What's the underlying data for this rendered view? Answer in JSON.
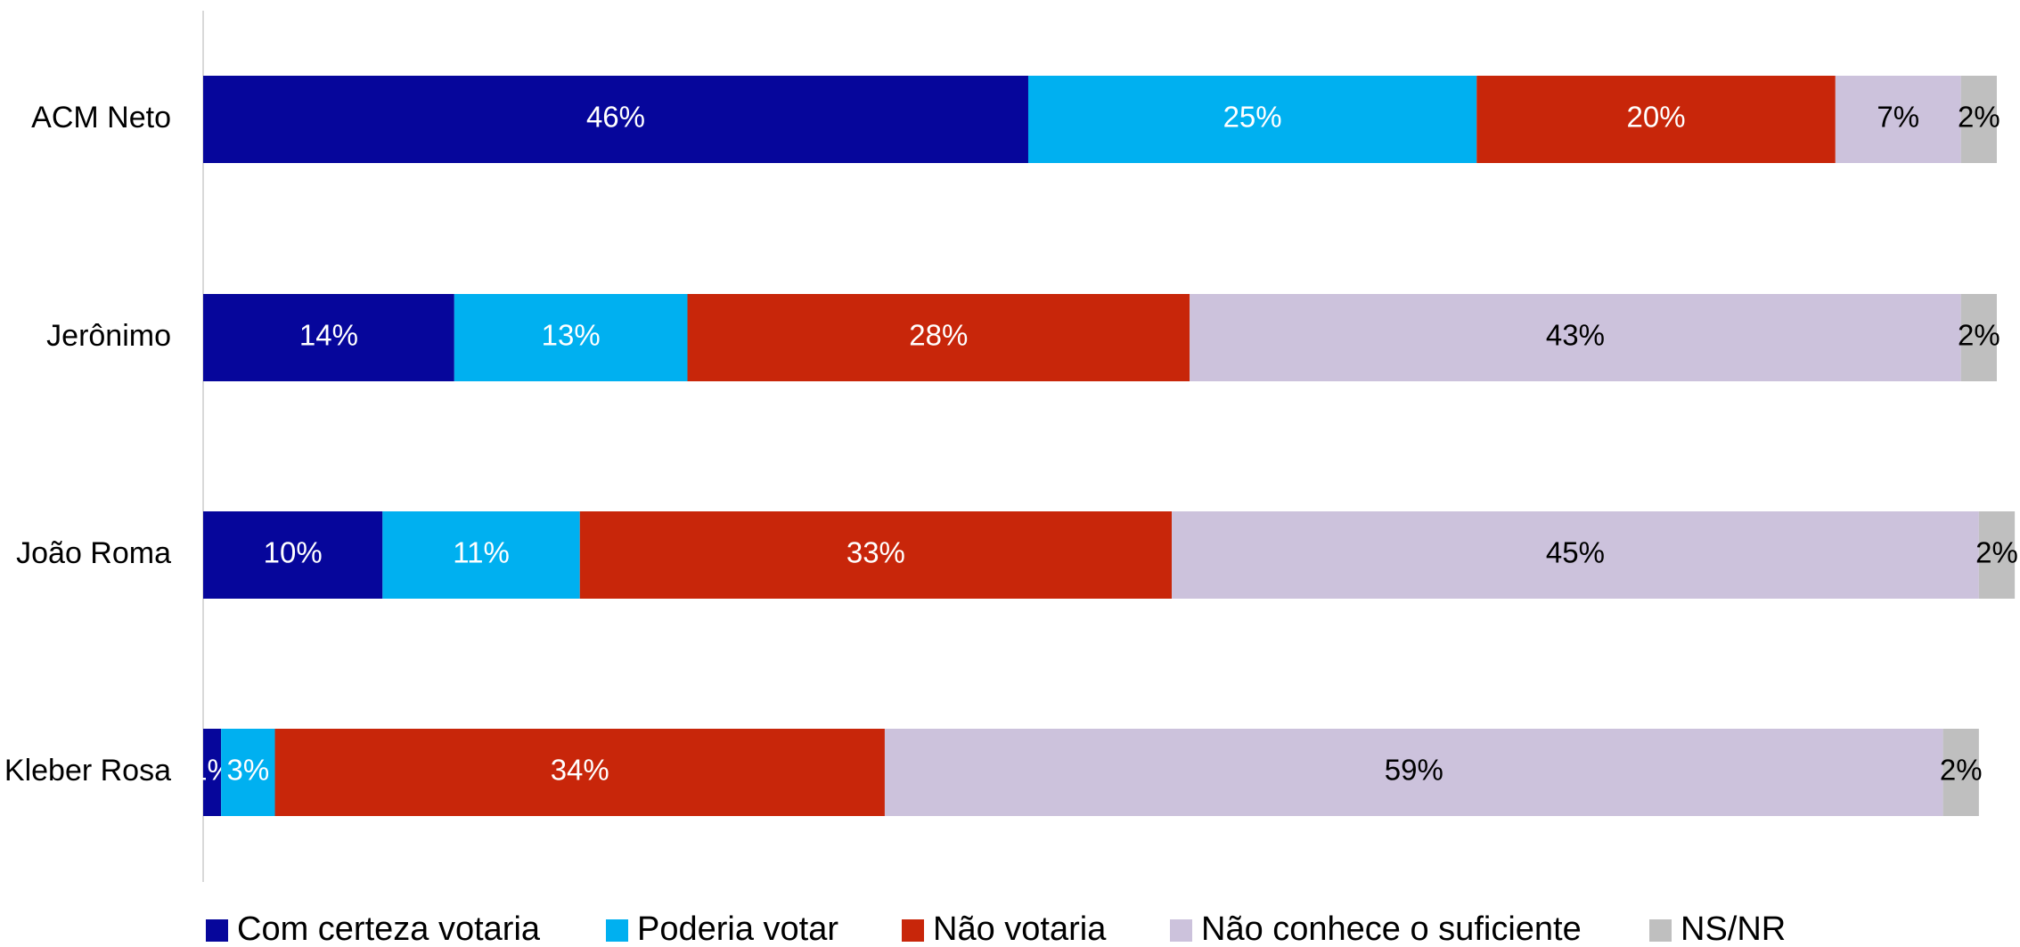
{
  "chart_data": {
    "type": "stacked_barh",
    "categories": [
      "ACM Neto",
      "Jerônimo",
      "João Roma",
      "Kleber Rosa"
    ],
    "xlim": [
      0,
      100
    ],
    "legend": "bottom",
    "series": [
      {
        "name": "Com certeza votaria",
        "color": "#06069b",
        "label_color": "#ffffff",
        "values": [
          46,
          14,
          10,
          1
        ],
        "value_labels": [
          "46%",
          "14%",
          "10%",
          "1%"
        ]
      },
      {
        "name": "Poderia votar",
        "color": "#00b0f0",
        "label_color": "#ffffff",
        "values": [
          25,
          13,
          11,
          3
        ],
        "value_labels": [
          "25%",
          "13%",
          "11%",
          "3%"
        ]
      },
      {
        "name": "Não votaria",
        "color": "#c8260a",
        "label_color": "#ffffff",
        "values": [
          20,
          28,
          33,
          34
        ],
        "value_labels": [
          "20%",
          "28%",
          "33%",
          "34%"
        ]
      },
      {
        "name": "Não conhece o suficiente",
        "color": "#ccc2dc",
        "label_color": "#000000",
        "values": [
          7,
          43,
          45,
          59
        ],
        "value_labels": [
          "7%",
          "43%",
          "45%",
          "59%"
        ]
      },
      {
        "name": "NS/NR",
        "color": "#bfbfbf",
        "label_color": "#000000",
        "values": [
          2,
          2,
          2,
          2
        ],
        "value_labels": [
          "2%",
          "2%",
          "2%",
          "2%"
        ]
      }
    ]
  }
}
